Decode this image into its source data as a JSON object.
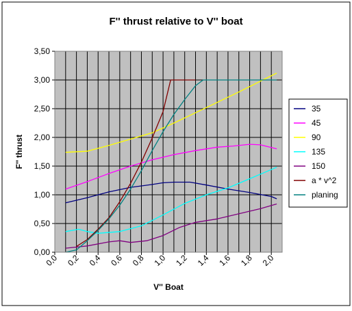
{
  "chart_data": {
    "type": "line",
    "title": "F'' thrust relative to V'' boat",
    "xlabel": "V'' Boat",
    "ylabel": "F'' thrust",
    "xlim": [
      0.0,
      2.1
    ],
    "ylim": [
      0.0,
      3.5
    ],
    "x_ticks": [
      "0,0",
      "0,2",
      "0,4",
      "0,6",
      "0,8",
      "1,0",
      "1,2",
      "1,4",
      "1,6",
      "1,8",
      "2,0"
    ],
    "y_ticks": [
      "0,00",
      "0,50",
      "1,00",
      "1,50",
      "2,00",
      "2,50",
      "3,00",
      "3,50"
    ],
    "grid": true,
    "plot_background": "#c0c0c0",
    "legend_position": "right",
    "series": [
      {
        "name": "35",
        "color": "#000080",
        "points": [
          [
            0.1,
            0.86
          ],
          [
            0.3,
            0.95
          ],
          [
            0.5,
            1.05
          ],
          [
            0.7,
            1.13
          ],
          [
            0.9,
            1.18
          ],
          [
            1.0,
            1.21
          ],
          [
            1.1,
            1.22
          ],
          [
            1.25,
            1.22
          ],
          [
            1.4,
            1.17
          ],
          [
            1.6,
            1.1
          ],
          [
            1.8,
            1.04
          ],
          [
            2.0,
            0.97
          ],
          [
            2.05,
            0.93
          ]
        ]
      },
      {
        "name": "45",
        "color": "#ff00ff",
        "points": [
          [
            0.1,
            1.1
          ],
          [
            0.3,
            1.23
          ],
          [
            0.5,
            1.37
          ],
          [
            0.7,
            1.5
          ],
          [
            0.9,
            1.61
          ],
          [
            1.1,
            1.7
          ],
          [
            1.3,
            1.77
          ],
          [
            1.5,
            1.83
          ],
          [
            1.65,
            1.85
          ],
          [
            1.8,
            1.88
          ],
          [
            1.9,
            1.87
          ],
          [
            2.05,
            1.8
          ]
        ]
      },
      {
        "name": "90",
        "color": "#ffff00",
        "points": [
          [
            0.1,
            1.74
          ],
          [
            0.3,
            1.76
          ],
          [
            0.5,
            1.86
          ],
          [
            0.7,
            1.97
          ],
          [
            0.9,
            2.08
          ],
          [
            1.1,
            2.25
          ],
          [
            1.3,
            2.43
          ],
          [
            1.5,
            2.61
          ],
          [
            1.7,
            2.79
          ],
          [
            1.9,
            2.98
          ],
          [
            2.05,
            3.12
          ]
        ]
      },
      {
        "name": "135",
        "color": "#00ffff",
        "points": [
          [
            0.1,
            0.36
          ],
          [
            0.22,
            0.4
          ],
          [
            0.3,
            0.36
          ],
          [
            0.4,
            0.33
          ],
          [
            0.6,
            0.36
          ],
          [
            0.8,
            0.46
          ],
          [
            1.0,
            0.65
          ],
          [
            1.2,
            0.85
          ],
          [
            1.4,
            1.0
          ],
          [
            1.6,
            1.12
          ],
          [
            1.8,
            1.28
          ],
          [
            2.05,
            1.48
          ]
        ]
      },
      {
        "name": "150",
        "color": "#800080",
        "points": [
          [
            0.1,
            0.07
          ],
          [
            0.3,
            0.11
          ],
          [
            0.5,
            0.18
          ],
          [
            0.6,
            0.2
          ],
          [
            0.7,
            0.17
          ],
          [
            0.85,
            0.2
          ],
          [
            1.0,
            0.29
          ],
          [
            1.15,
            0.43
          ],
          [
            1.3,
            0.52
          ],
          [
            1.5,
            0.58
          ],
          [
            1.7,
            0.67
          ],
          [
            1.9,
            0.76
          ],
          [
            2.05,
            0.84
          ]
        ]
      },
      {
        "name": "a * v^2",
        "color": "#800000",
        "points": [
          [
            0.2,
            0.1
          ],
          [
            0.3,
            0.22
          ],
          [
            0.4,
            0.4
          ],
          [
            0.5,
            0.6
          ],
          [
            0.6,
            0.88
          ],
          [
            0.7,
            1.2
          ],
          [
            0.8,
            1.57
          ],
          [
            0.9,
            1.99
          ],
          [
            1.0,
            2.45
          ],
          [
            1.07,
            3.0
          ],
          [
            1.3,
            3.0
          ]
        ]
      },
      {
        "name": "planing",
        "color": "#008080",
        "points": [
          [
            0.1,
            0.0
          ],
          [
            0.2,
            0.04
          ],
          [
            0.3,
            0.2
          ],
          [
            0.4,
            0.38
          ],
          [
            0.5,
            0.58
          ],
          [
            0.6,
            0.82
          ],
          [
            0.7,
            1.1
          ],
          [
            0.8,
            1.42
          ],
          [
            0.9,
            1.77
          ],
          [
            1.0,
            2.1
          ],
          [
            1.1,
            2.4
          ],
          [
            1.2,
            2.66
          ],
          [
            1.3,
            2.9
          ],
          [
            1.37,
            3.0
          ],
          [
            2.05,
            3.0
          ]
        ]
      }
    ]
  }
}
